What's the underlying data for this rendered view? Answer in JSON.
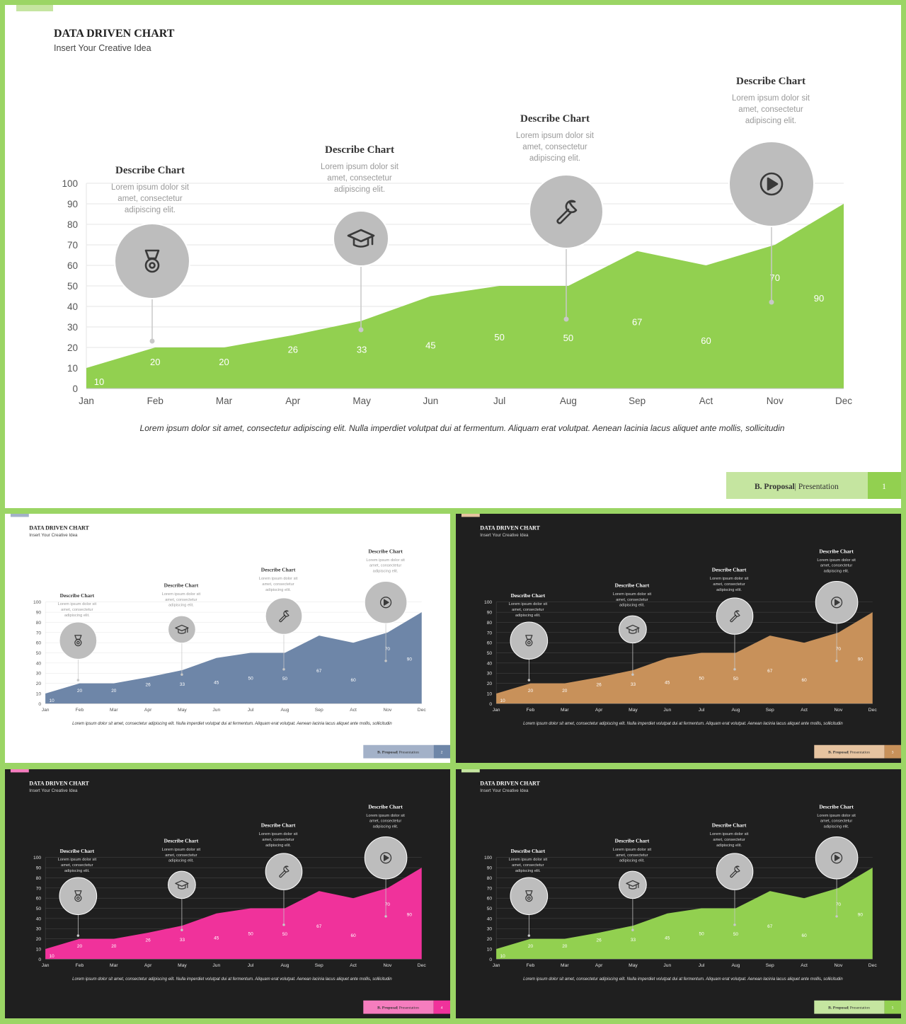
{
  "common": {
    "title": "DATA DRIVEN CHART",
    "subtitle": "Insert Your Creative Idea",
    "caption": "Lorem  ipsum dolor sit amet,  consectetur  adipiscing elit.  Nulla imperdiet volutpat dui at fermentum.  Aliquam erat volutpat.  Aenean lacinia lacus aliquet ante mollis,  sollicitudin",
    "footer_brand": "B. Proposal",
    "footer_label": "Presentation",
    "callouts": [
      {
        "title": "Describe Chart",
        "lines": [
          "Lorem  ipsum dolor sit",
          "amet,  consectetur",
          "adipiscing elit."
        ],
        "icon": "medal-icon",
        "month_index": 1
      },
      {
        "title": "Describe Chart",
        "lines": [
          "Lorem  ipsum dolor sit",
          "amet,  consectetur",
          "adipiscing elit."
        ],
        "icon": "graduation-cap-icon",
        "month_index": 4
      },
      {
        "title": "Describe Chart",
        "lines": [
          "Lorem  ipsum dolor sit",
          "amet,  consectetur",
          "adipiscing elit."
        ],
        "icon": "wrench-icon",
        "month_index": 7
      },
      {
        "title": "Describe Chart",
        "lines": [
          "Lorem  ipsum dolor sit",
          "amet,  consectetur",
          "adipiscing elit."
        ],
        "icon": "play-icon",
        "month_index": 10
      }
    ]
  },
  "chart_data": {
    "type": "area",
    "categories": [
      "Jan",
      "Feb",
      "Mar",
      "Apr",
      "May",
      "Jun",
      "Jul",
      "Aug",
      "Sep",
      "Act",
      "Nov",
      "Dec"
    ],
    "values": [
      10,
      20,
      20,
      26,
      33,
      45,
      50,
      50,
      67,
      60,
      70,
      90
    ],
    "y_ticks": [
      "0",
      "10",
      "20",
      "30",
      "40",
      "50",
      "60",
      "70",
      "80",
      "90",
      "100"
    ],
    "ylim": [
      0,
      100
    ],
    "grid": true,
    "data_labels": true
  },
  "slides": [
    {
      "page": "1",
      "theme": "light",
      "fill": "#92d050",
      "footer_box": "#c5e5a0",
      "footer_num_box": "#92d050",
      "accent_tab": "#c5e5a0"
    },
    {
      "page": "2",
      "theme": "light",
      "fill": "#6e86a8",
      "footer_box": "#a3b1c8",
      "footer_num_box": "#6e86a8",
      "accent_tab": "#a3b1c8"
    },
    {
      "page": "3",
      "theme": "dark",
      "fill": "#c8915a",
      "footer_box": "#e6c3a0",
      "footer_num_box": "#c8915a",
      "accent_tab": "#e6c3a0"
    },
    {
      "page": "4",
      "theme": "dark",
      "fill": "#f0329b",
      "footer_box": "#f57dbe",
      "footer_num_box": "#f0329b",
      "accent_tab": "#f57dbe"
    },
    {
      "page": "5",
      "theme": "dark",
      "fill": "#92d050",
      "footer_box": "#c5e5a0",
      "footer_num_box": "#92d050",
      "accent_tab": "#c5e5a0"
    }
  ]
}
